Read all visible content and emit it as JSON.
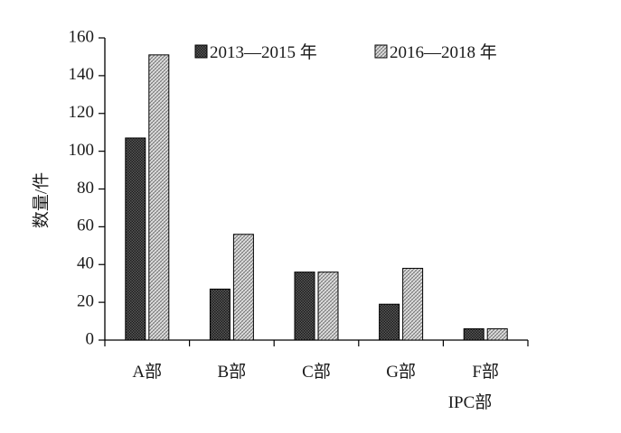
{
  "chart_data": {
    "type": "bar",
    "categories": [
      "A部",
      "B部",
      "C部",
      "G部",
      "F部"
    ],
    "series": [
      {
        "name": "2013—2015 年",
        "values": [
          107,
          27,
          36,
          19,
          6
        ]
      },
      {
        "name": "2016—2018 年",
        "values": [
          151,
          56,
          36,
          38,
          6
        ]
      }
    ],
    "xlabel": "IPC部",
    "ylabel": "数量/件",
    "ylim": [
      0,
      160
    ],
    "yticks": [
      0,
      20,
      40,
      60,
      80,
      100,
      120,
      140,
      160
    ],
    "grid": false,
    "legend": "top"
  },
  "colors": {
    "axis": "#000000",
    "bar_stroke": "#000000",
    "series_fill_1": "#3a3a3a",
    "series_fill_2": "#b8b8b8"
  }
}
